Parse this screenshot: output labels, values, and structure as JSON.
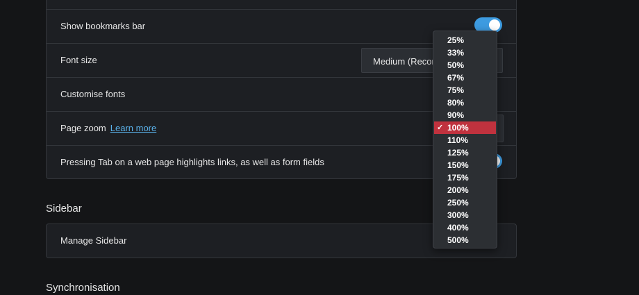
{
  "appearance": {
    "bookmarks_label": "Show bookmarks bar",
    "font_size_label": "Font size",
    "font_size_value": "Medium (Recommended)",
    "customise_fonts_label": "Customise fonts",
    "page_zoom_label": "Page zoom",
    "learn_more": "Learn more",
    "tab_highlight_label": "Pressing Tab on a web page highlights links, as well as form fields",
    "bookmarks_enabled": true,
    "tab_highlight_enabled": true
  },
  "sections": {
    "sidebar_title": "Sidebar",
    "manage_sidebar": "Manage Sidebar",
    "sync_title": "Synchronisation"
  },
  "zoom_dropdown": {
    "selected": "100%",
    "check": "✓",
    "options": [
      "25%",
      "33%",
      "50%",
      "67%",
      "75%",
      "80%",
      "90%",
      "100%",
      "110%",
      "125%",
      "150%",
      "175%",
      "200%",
      "250%",
      "300%",
      "400%",
      "500%"
    ]
  },
  "colors": {
    "accent": "#3d9be0",
    "selected": "#c0323e",
    "link": "#5ab1ea"
  }
}
